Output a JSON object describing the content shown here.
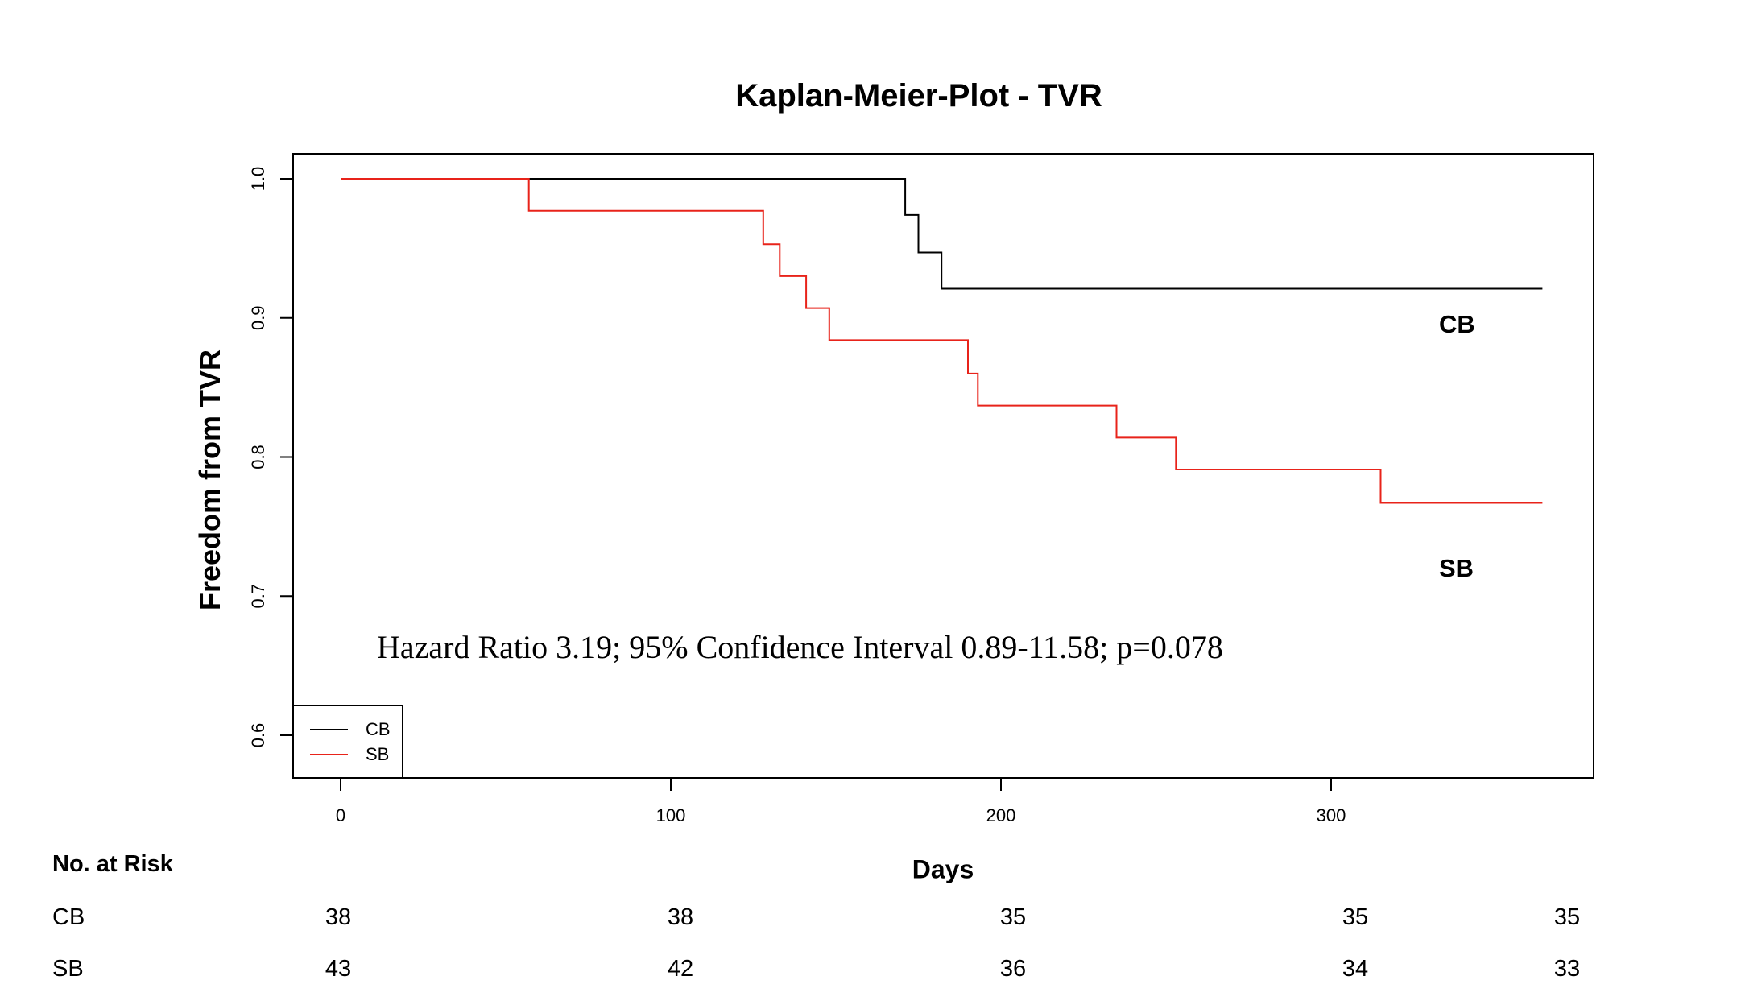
{
  "chart_data": {
    "type": "line",
    "step": true,
    "title": "Kaplan-Meier-Plot - TVR",
    "xlabel": "Days",
    "ylabel": "Freedom from TVR",
    "xlim": [
      0,
      365
    ],
    "ylim": [
      0.6,
      1.0
    ],
    "xticks": [
      "0",
      "100",
      "200",
      "300"
    ],
    "yticks": [
      "0.6",
      "0.7",
      "0.8",
      "0.9",
      "1.0"
    ],
    "grid": false,
    "legend_position": "bottom-left",
    "series": [
      {
        "name": "CB",
        "color": "#000000",
        "x": [
          0,
          171,
          175,
          182,
          364
        ],
        "y": [
          1.0,
          0.974,
          0.947,
          0.921,
          0.921
        ]
      },
      {
        "name": "SB",
        "color": "#e8231a",
        "x": [
          0,
          57,
          128,
          133,
          141,
          148,
          190,
          193,
          235,
          253,
          315,
          364
        ],
        "y": [
          1.0,
          0.977,
          0.953,
          0.93,
          0.907,
          0.884,
          0.86,
          0.837,
          0.814,
          0.791,
          0.767,
          0.767
        ]
      }
    ],
    "annotations": {
      "cb_label": "CB",
      "sb_label": "SB",
      "hazard": "Hazard Ratio 3.19; 95% Confidence Interval 0.89-11.58; p=0.078"
    },
    "risk_table": {
      "title": "No. at Risk",
      "rows": [
        {
          "label": "CB",
          "values": [
            "38",
            "38",
            "35",
            "35",
            "35"
          ]
        },
        {
          "label": "SB",
          "values": [
            "43",
            "42",
            "36",
            "34",
            "33"
          ]
        }
      ]
    }
  }
}
